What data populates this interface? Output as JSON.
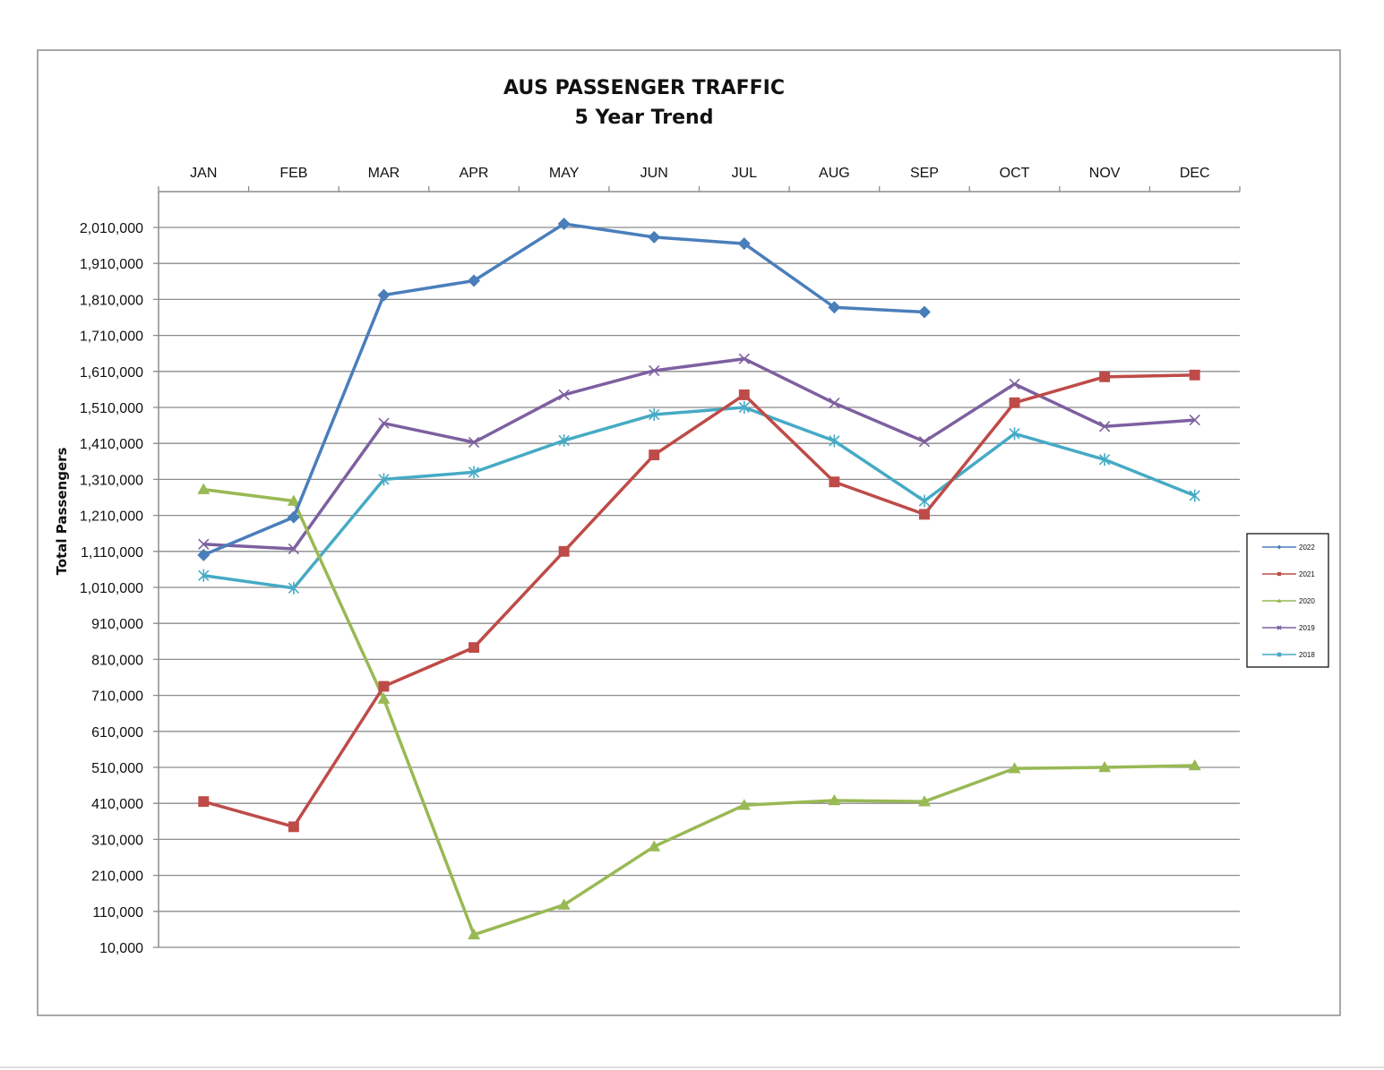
{
  "chart_data": {
    "type": "line",
    "title": "AUS PASSENGER TRAFFIC",
    "subtitle": "5 Year Trend",
    "ylabel": "Total Passengers",
    "xlabel": "",
    "categories": [
      "JAN",
      "FEB",
      "MAR",
      "APR",
      "MAY",
      "JUN",
      "JUL",
      "AUG",
      "SEP",
      "OCT",
      "NOV",
      "DEC"
    ],
    "ylim": [
      10000,
      2010000
    ],
    "yticks": [
      10000,
      110000,
      210000,
      310000,
      410000,
      510000,
      610000,
      710000,
      810000,
      910000,
      1010000,
      1110000,
      1210000,
      1310000,
      1410000,
      1510000,
      1610000,
      1710000,
      1810000,
      1910000,
      2010000
    ],
    "ytick_labels": [
      "10,000",
      "110,000",
      "210,000",
      "310,000",
      "410,000",
      "510,000",
      "610,000",
      "710,000",
      "810,000",
      "910,000",
      "1,010,000",
      "1,110,000",
      "1,210,000",
      "1,310,000",
      "1,410,000",
      "1,510,000",
      "1,610,000",
      "1,710,000",
      "1,810,000",
      "1,910,000",
      "2,010,000"
    ],
    "grid": true,
    "x_axis_position": "top",
    "legend_position": "right",
    "series": [
      {
        "name": "2022",
        "color": "#4a7ebb",
        "marker": "diamond",
        "values": [
          1100000,
          1205000,
          1822000,
          1862000,
          2020000,
          1983000,
          1965000,
          1788000,
          1775000,
          null,
          null,
          null
        ]
      },
      {
        "name": "2021",
        "color": "#be4b48",
        "marker": "square",
        "values": [
          415000,
          345000,
          735000,
          843000,
          1110000,
          1378000,
          1545000,
          1303000,
          1213000,
          1523000,
          1595000,
          1600000
        ]
      },
      {
        "name": "2020",
        "color": "#98b954",
        "marker": "triangle",
        "values": [
          1282000,
          1250000,
          700000,
          45000,
          128000,
          290000,
          405000,
          418000,
          415000,
          507000,
          510000,
          515000
        ]
      },
      {
        "name": "2019",
        "color": "#7d60a0",
        "marker": "x",
        "values": [
          1130000,
          1117000,
          1466000,
          1413000,
          1545000,
          1612000,
          1645000,
          1522000,
          1415000,
          1575000,
          1457000,
          1475000
        ]
      },
      {
        "name": "2018",
        "color": "#46aac5",
        "marker": "star",
        "values": [
          1043000,
          1008000,
          1310000,
          1330000,
          1418000,
          1490000,
          1510000,
          1417000,
          1250000,
          1437000,
          1365000,
          1265000
        ]
      }
    ]
  }
}
